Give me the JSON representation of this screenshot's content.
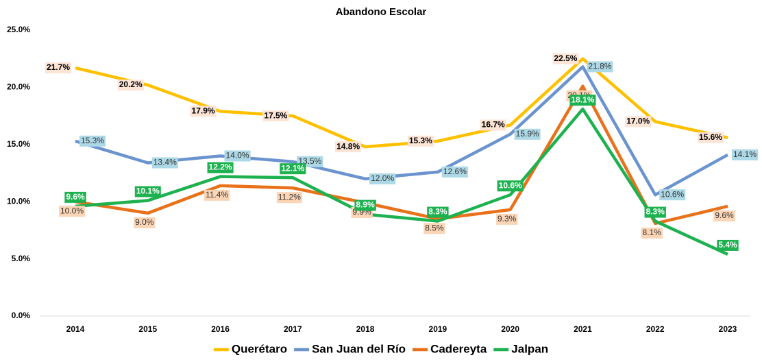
{
  "chart_data": {
    "type": "line",
    "title": "Abandono Escolar",
    "categories": [
      "2014",
      "2015",
      "2016",
      "2017",
      "2018",
      "2019",
      "2020",
      "2021",
      "2022",
      "2023"
    ],
    "ylim": [
      0,
      25
    ],
    "yticks": [
      {
        "value": 0,
        "label": "0.0%"
      },
      {
        "value": 5,
        "label": "5.0%"
      },
      {
        "value": 10,
        "label": "10.0%"
      },
      {
        "value": 15,
        "label": "15.0%"
      },
      {
        "value": 20,
        "label": "20.0%"
      },
      {
        "value": 25,
        "label": "25.0%"
      }
    ],
    "grid": false,
    "legend": "bottom",
    "series": [
      {
        "name": "Querétaro",
        "color": "#FFC000",
        "values": [
          21.7,
          20.2,
          17.9,
          17.5,
          14.8,
          15.3,
          16.7,
          22.5,
          17.0,
          15.6
        ],
        "value_labels": [
          "21.7%",
          "20.2%",
          "17.9%",
          "17.5%",
          "14.8%",
          "15.3%",
          "16.7%",
          "22.5%",
          "17.0%",
          "15.6%"
        ]
      },
      {
        "name": "San Juan del Río",
        "color": "#6A93CF",
        "values": [
          15.3,
          13.4,
          14.0,
          13.5,
          12.0,
          12.6,
          15.9,
          21.8,
          10.6,
          14.1
        ],
        "value_labels": [
          "15.3%",
          "13.4%",
          "14.0%",
          "13.5%",
          "12.0%",
          "12.6%",
          "15.9%",
          "21.8%",
          "10.6%",
          "14.1%"
        ]
      },
      {
        "name": "Cadereyta",
        "color": "#E8711A",
        "values": [
          10.0,
          9.0,
          11.4,
          11.2,
          9.9,
          8.5,
          9.3,
          20.1,
          8.1,
          9.6
        ],
        "value_labels": [
          "10.0%",
          "9.0%",
          "11.4%",
          "11.2%",
          "9.9%",
          "8.5%",
          "9.3%",
          "20.1%",
          "8.1%",
          "9.6%"
        ]
      },
      {
        "name": "Jalpan",
        "color": "#1DB14F",
        "values": [
          9.6,
          10.1,
          12.2,
          12.1,
          8.9,
          8.3,
          10.6,
          18.1,
          8.3,
          5.4
        ],
        "value_labels": [
          "9.6%",
          "10.1%",
          "12.2%",
          "12.1%",
          "8.9%",
          "8.3%",
          "10.6%",
          "18.1%",
          "8.3%",
          "5.4%"
        ]
      }
    ]
  }
}
